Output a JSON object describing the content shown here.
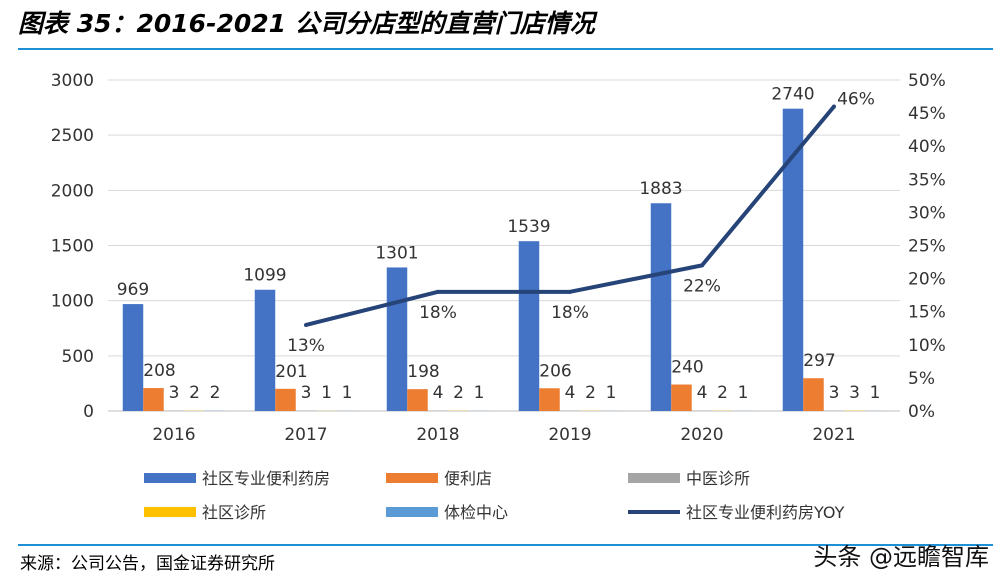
{
  "header": {
    "title": "图表 35：2016-2021 公司分店型的直营门店情况"
  },
  "footer": {
    "source": "来源：公司公告，国金证券研究所",
    "watermark": "头条 @远瞻智库"
  },
  "chart_data": {
    "type": "bar",
    "title": "",
    "categories": [
      "2016",
      "2017",
      "2018",
      "2019",
      "2020",
      "2021"
    ],
    "ylim": [
      0,
      3000
    ],
    "y_ticks": [
      "0",
      "500",
      "1000",
      "1500",
      "2000",
      "2500",
      "3000"
    ],
    "y2lim": [
      0,
      0.5
    ],
    "y2_ticks": [
      "0%",
      "5%",
      "10%",
      "15%",
      "20%",
      "25%",
      "30%",
      "35%",
      "40%",
      "45%",
      "50%"
    ],
    "grid": true,
    "legend_position": "bottom",
    "series": [
      {
        "name": "社区专业便利药房",
        "kind": "bar",
        "axis": "left",
        "color": "#4472c4",
        "values": [
          969,
          1099,
          1301,
          1539,
          1883,
          2740
        ],
        "labels": [
          "969",
          "1099",
          "1301",
          "1539",
          "1883",
          "2740"
        ]
      },
      {
        "name": "便利店",
        "kind": "bar",
        "axis": "left",
        "color": "#ed7d31",
        "values": [
          208,
          201,
          198,
          206,
          240,
          297
        ],
        "labels": [
          "208",
          "201",
          "198",
          "206",
          "240",
          "297"
        ]
      },
      {
        "name": "中医诊所",
        "kind": "bar",
        "axis": "left",
        "color": "#a5a5a5",
        "values": [
          3,
          3,
          4,
          4,
          4,
          3
        ],
        "labels": [
          "3",
          "3",
          "4",
          "4",
          "4",
          "3"
        ]
      },
      {
        "name": "社区诊所",
        "kind": "bar",
        "axis": "left",
        "color": "#ffc000",
        "values": [
          2,
          1,
          2,
          2,
          2,
          3
        ],
        "labels": [
          "2",
          "1",
          "2",
          "2",
          "2",
          "3"
        ]
      },
      {
        "name": "体检中心",
        "kind": "bar",
        "axis": "left",
        "color": "#5b9bd5",
        "values": [
          2,
          1,
          1,
          1,
          1,
          1
        ],
        "labels": [
          "2",
          "1",
          "1",
          "1",
          "1",
          "1"
        ]
      },
      {
        "name": "社区专业便利药房YOY",
        "kind": "line",
        "axis": "right",
        "color": "#264478",
        "values": [
          null,
          0.13,
          0.18,
          0.18,
          0.22,
          0.46
        ],
        "labels": [
          "",
          "13%",
          "18%",
          "18%",
          "22%",
          "46%"
        ]
      }
    ]
  }
}
